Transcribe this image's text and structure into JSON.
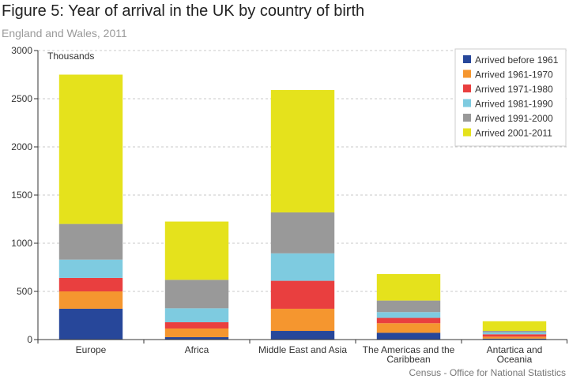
{
  "header": {
    "title": "Figure 5: Year of arrival in the UK by country of birth",
    "subtitle": "England and Wales, 2011"
  },
  "footer": {
    "source": "Census - Office for National Statistics"
  },
  "chart_data": {
    "type": "bar",
    "stacked": true,
    "title": "Figure 5: Year of arrival in the UK by country of birth",
    "subtitle": "England and Wales, 2011",
    "xlabel": "",
    "ylabel": "Thousands",
    "ylim": [
      0,
      3000
    ],
    "yticks": [
      0,
      500,
      1000,
      1500,
      2000,
      2500,
      3000
    ],
    "grid": true,
    "legend_position": "top-right",
    "categories": [
      "Europe",
      "Africa",
      "Middle East and Asia",
      "The Americas and the Caribbean",
      "Antartica and Oceania"
    ],
    "series": [
      {
        "name": "Arrived before 1961",
        "color": "#27479a",
        "values": [
          320,
          25,
          90,
          70,
          10
        ]
      },
      {
        "name": "Arrived 1961-1970",
        "color": "#f5962f",
        "values": [
          180,
          90,
          230,
          100,
          20
        ]
      },
      {
        "name": "Arrived 1971-1980",
        "color": "#e93f3f",
        "values": [
          140,
          65,
          290,
          55,
          25
        ]
      },
      {
        "name": "Arrived 1981-1990",
        "color": "#7ecbe0",
        "values": [
          190,
          145,
          285,
          60,
          20
        ]
      },
      {
        "name": "Arrived 1991-2000",
        "color": "#999999",
        "values": [
          370,
          295,
          425,
          120,
          15
        ]
      },
      {
        "name": "Arrived 2001-2011",
        "color": "#e5e21c",
        "values": [
          1550,
          605,
          1270,
          275,
          100
        ]
      }
    ]
  }
}
